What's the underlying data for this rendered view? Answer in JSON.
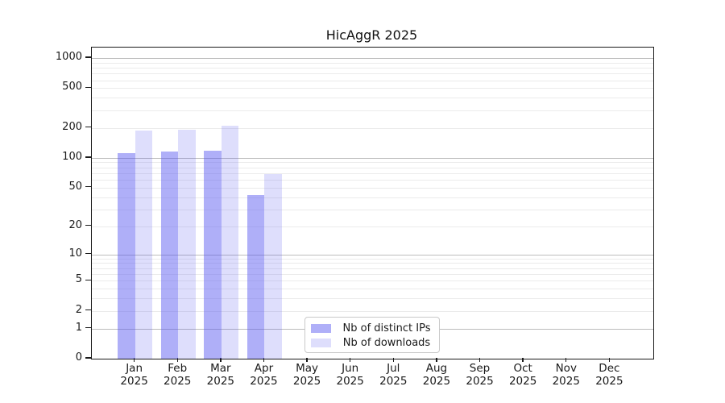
{
  "chart_data": {
    "type": "bar",
    "title": "HicAggR 2025",
    "categories": [
      "Jan 2025",
      "Feb 2025",
      "Mar 2025",
      "Apr 2025",
      "May 2025",
      "Jun 2025",
      "Jul 2025",
      "Aug 2025",
      "Sep 2025",
      "Oct 2025",
      "Nov 2025",
      "Dec 2025"
    ],
    "series": [
      {
        "name": "Nb of distinct IPs",
        "color": "rgba(88,88,240,0.48)",
        "values": [
          112,
          115,
          117,
          42,
          null,
          null,
          null,
          null,
          null,
          null,
          null,
          null
        ]
      },
      {
        "name": "Nb of downloads",
        "color": "rgba(88,88,240,0.20)",
        "values": [
          189,
          193,
          211,
          69,
          null,
          null,
          null,
          null,
          null,
          null,
          null,
          null
        ]
      }
    ],
    "xlabel": "",
    "ylabel": "",
    "yscale": "log1p",
    "ylim": [
      0,
      1273
    ],
    "yticks": [
      0,
      1,
      2,
      5,
      10,
      20,
      50,
      100,
      200,
      500,
      1000
    ],
    "y_major_gridlines": [
      1,
      10,
      100,
      1000
    ],
    "y_minor_gridlines": [
      2,
      3,
      4,
      5,
      6,
      7,
      8,
      9,
      20,
      30,
      40,
      50,
      60,
      70,
      80,
      90,
      200,
      300,
      400,
      500,
      600,
      700,
      800,
      900
    ],
    "grid": "on",
    "legend": {
      "location": "inside-lower-center"
    },
    "colors": {
      "bar_ips_on_white": "#a8a8f7",
      "bar_downloads_on_white": "#dadaf9",
      "major_grid": "#bdbdbd",
      "minor_grid": "#ebebeb",
      "spine": "#1a1a1a",
      "text": "#1a1a1a",
      "background": "#ffffff"
    }
  }
}
